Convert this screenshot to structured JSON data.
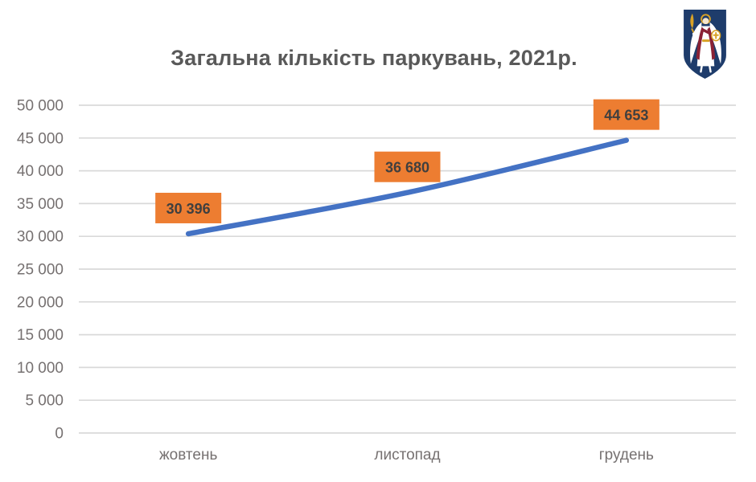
{
  "header": {
    "title": "Загальна кількість паркувань, 2021р."
  },
  "chart_data": {
    "type": "line",
    "title": "Загальна кількість паркувань, 2021р.",
    "categories": [
      "жовтень",
      "листопад",
      "грудень"
    ],
    "series": [
      {
        "values": [
          30396,
          36680,
          44653
        ],
        "point_labels": [
          "30 396",
          "36 680",
          "44 653"
        ]
      }
    ],
    "xlabel": "",
    "ylabel": "",
    "ylim": [
      0,
      50000
    ],
    "y_tick_step": 5000,
    "y_tick_labels": [
      "0",
      "5 000",
      "10 000",
      "15 000",
      "20 000",
      "25 000",
      "30 000",
      "35 000",
      "40 000",
      "45 000",
      "50 000"
    ],
    "grid": "horizontal",
    "legend": "none",
    "line_style": "smooth",
    "colors": {
      "line": "#4472C4",
      "label_bg": "#ED7D31",
      "label_text": "#3F3F3F",
      "axis_text": "#767171",
      "grid": "#D9D9D9",
      "title": "#595959"
    }
  }
}
